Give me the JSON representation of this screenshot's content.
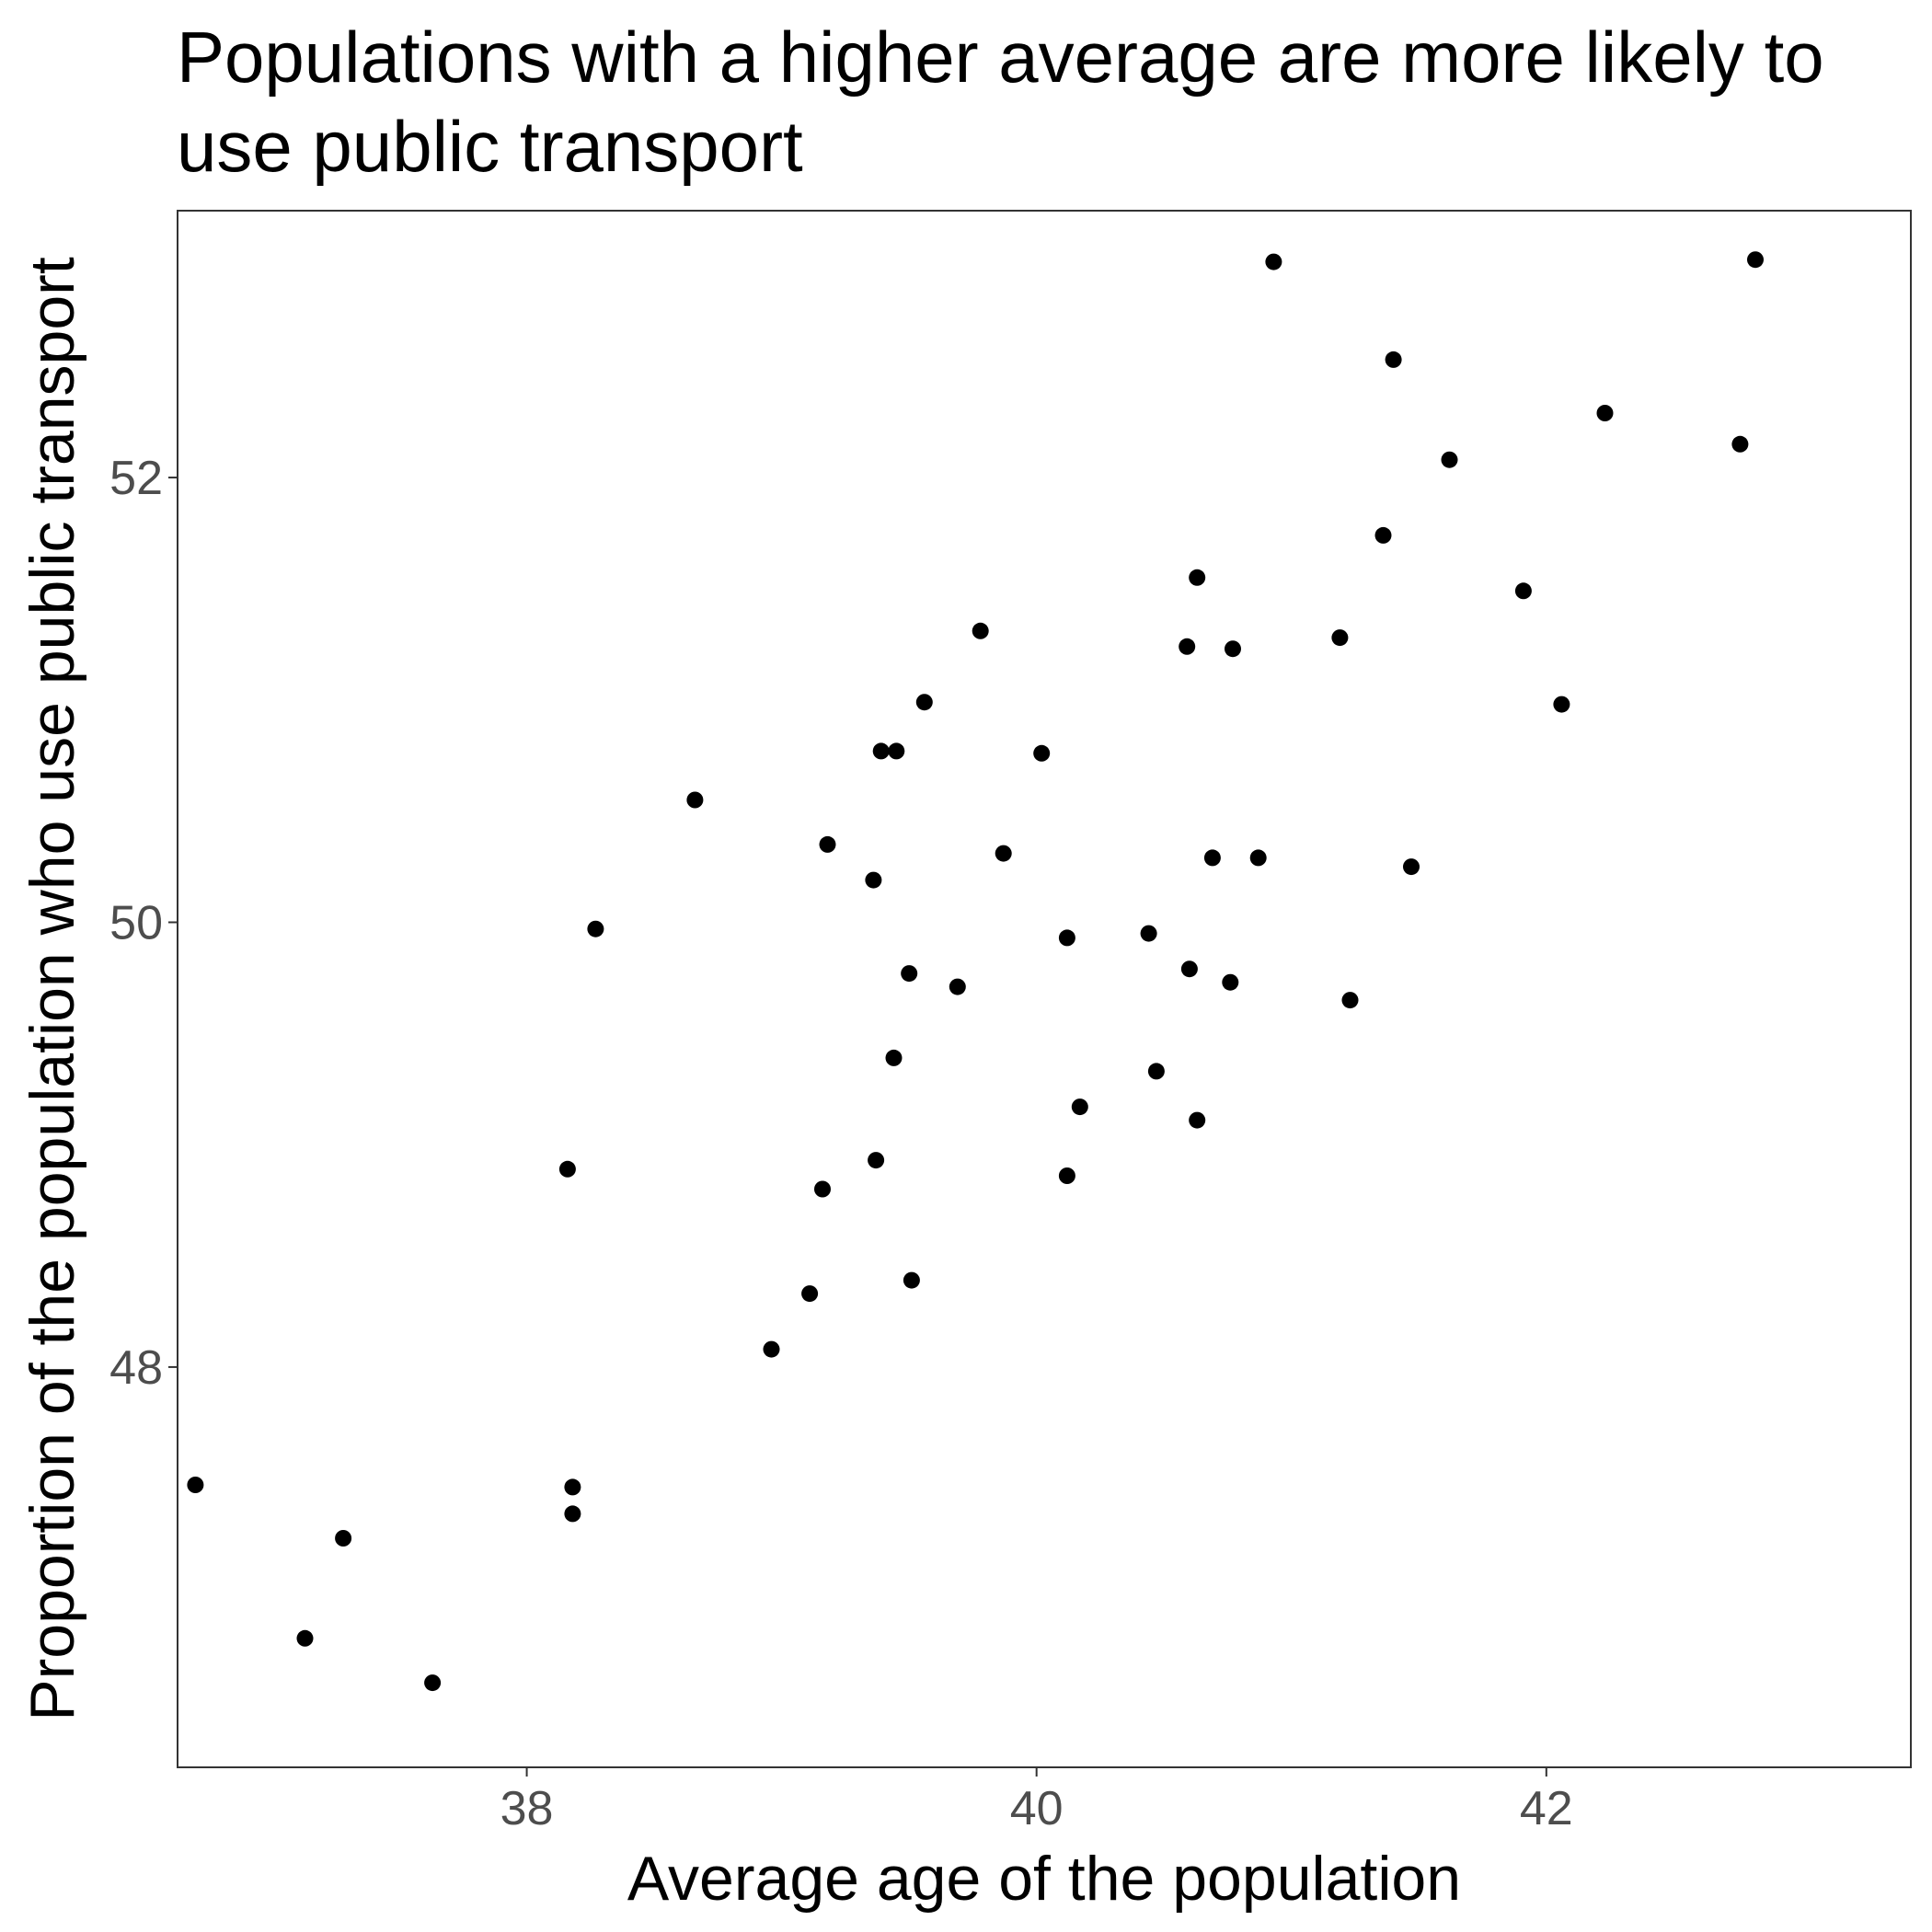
{
  "chart_data": {
    "type": "scatter",
    "title": "Populations with a higher average are more likely to use public transport",
    "xlabel": "Average age of the population",
    "ylabel": "Proportion of the population who use public transport",
    "xlim": [
      36.63,
      43.43
    ],
    "ylim": [
      46.2,
      53.2
    ],
    "xticks": [
      38,
      40,
      42
    ],
    "yticks": [
      48,
      50,
      52
    ],
    "grid": false,
    "point_color": "#000000",
    "points": [
      {
        "x": 36.7,
        "y": 47.47
      },
      {
        "x": 37.13,
        "y": 46.78
      },
      {
        "x": 37.28,
        "y": 47.23
      },
      {
        "x": 37.63,
        "y": 46.58
      },
      {
        "x": 38.16,
        "y": 48.89
      },
      {
        "x": 38.18,
        "y": 47.46
      },
      {
        "x": 38.18,
        "y": 47.34
      },
      {
        "x": 38.27,
        "y": 49.97
      },
      {
        "x": 38.66,
        "y": 50.55
      },
      {
        "x": 38.96,
        "y": 48.08
      },
      {
        "x": 39.11,
        "y": 48.33
      },
      {
        "x": 39.16,
        "y": 48.8
      },
      {
        "x": 39.18,
        "y": 50.35
      },
      {
        "x": 39.36,
        "y": 50.19
      },
      {
        "x": 39.37,
        "y": 48.93
      },
      {
        "x": 39.39,
        "y": 50.77
      },
      {
        "x": 39.44,
        "y": 49.39
      },
      {
        "x": 39.45,
        "y": 50.77
      },
      {
        "x": 39.5,
        "y": 49.77
      },
      {
        "x": 39.51,
        "y": 48.39
      },
      {
        "x": 39.56,
        "y": 50.99
      },
      {
        "x": 39.69,
        "y": 49.71
      },
      {
        "x": 39.78,
        "y": 51.31
      },
      {
        "x": 39.87,
        "y": 50.31
      },
      {
        "x": 40.02,
        "y": 50.76
      },
      {
        "x": 40.12,
        "y": 49.93
      },
      {
        "x": 40.12,
        "y": 48.86
      },
      {
        "x": 40.17,
        "y": 49.17
      },
      {
        "x": 40.44,
        "y": 49.95
      },
      {
        "x": 40.47,
        "y": 49.33
      },
      {
        "x": 40.59,
        "y": 51.24
      },
      {
        "x": 40.6,
        "y": 49.79
      },
      {
        "x": 40.63,
        "y": 51.55
      },
      {
        "x": 40.63,
        "y": 49.11
      },
      {
        "x": 40.69,
        "y": 50.29
      },
      {
        "x": 40.76,
        "y": 49.73
      },
      {
        "x": 40.77,
        "y": 51.23
      },
      {
        "x": 40.87,
        "y": 50.29
      },
      {
        "x": 40.93,
        "y": 52.97
      },
      {
        "x": 41.19,
        "y": 51.28
      },
      {
        "x": 41.23,
        "y": 49.65
      },
      {
        "x": 41.36,
        "y": 51.74
      },
      {
        "x": 41.4,
        "y": 52.53
      },
      {
        "x": 41.47,
        "y": 50.25
      },
      {
        "x": 41.62,
        "y": 52.08
      },
      {
        "x": 41.91,
        "y": 51.49
      },
      {
        "x": 42.06,
        "y": 50.98
      },
      {
        "x": 42.23,
        "y": 52.29
      },
      {
        "x": 42.76,
        "y": 52.15
      },
      {
        "x": 42.82,
        "y": 52.98
      }
    ]
  }
}
